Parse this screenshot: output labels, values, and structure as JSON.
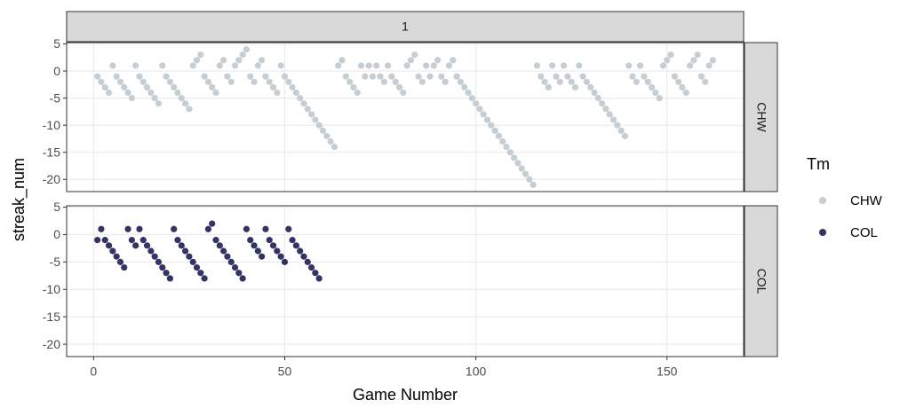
{
  "chart_data": {
    "type": "scatter",
    "strip_title": "1",
    "xlabel": "Game Number",
    "ylabel": "streak_num",
    "legend_title": "Tm",
    "xlim": [
      -7.05,
      170.05
    ],
    "xticks": [
      0,
      50,
      100,
      150
    ],
    "ylim": [
      -22.25,
      5.25
    ],
    "yticks": [
      -20,
      -15,
      -10,
      -5,
      0,
      5
    ],
    "grid": true,
    "legend": "right",
    "series": [
      {
        "name": "CHW",
        "color": "#c4ced4",
        "x": [
          1,
          2,
          3,
          4,
          5,
          6,
          7,
          8,
          9,
          10,
          11,
          12,
          13,
          14,
          15,
          16,
          17,
          18,
          19,
          20,
          21,
          22,
          23,
          24,
          25,
          26,
          27,
          28,
          29,
          30,
          31,
          32,
          33,
          34,
          35,
          36,
          37,
          38,
          39,
          40,
          41,
          42,
          43,
          44,
          45,
          46,
          47,
          48,
          49,
          50,
          51,
          52,
          53,
          54,
          55,
          56,
          57,
          58,
          59,
          60,
          61,
          62,
          63,
          64,
          65,
          66,
          67,
          68,
          69,
          70,
          71,
          72,
          73,
          74,
          75,
          76,
          77,
          78,
          79,
          80,
          81,
          82,
          83,
          84,
          85,
          86,
          87,
          88,
          89,
          90,
          91,
          92,
          93,
          94,
          95,
          96,
          97,
          98,
          99,
          100,
          101,
          102,
          103,
          104,
          105,
          106,
          107,
          108,
          109,
          110,
          111,
          112,
          113,
          114,
          115,
          116,
          117,
          118,
          119,
          120,
          121,
          122,
          123,
          124,
          125,
          126,
          127,
          128,
          129,
          130,
          131,
          132,
          133,
          134,
          135,
          136,
          137,
          138,
          139,
          140,
          141,
          142,
          143,
          144,
          145,
          146,
          147,
          148,
          149,
          150,
          151,
          152,
          153,
          154,
          155,
          156,
          157,
          158,
          159,
          160,
          161,
          162
        ],
        "values": [
          -1,
          -2,
          -3,
          -4,
          1,
          -1,
          -2,
          -3,
          -4,
          -5,
          1,
          -1,
          -2,
          -3,
          -4,
          -5,
          -6,
          1,
          -1,
          -2,
          -3,
          -4,
          -5,
          -6,
          -7,
          1,
          2,
          3,
          -1,
          -2,
          -3,
          -4,
          1,
          2,
          -1,
          -2,
          1,
          2,
          3,
          4,
          -1,
          -2,
          1,
          2,
          -1,
          -2,
          -3,
          -4,
          1,
          -1,
          -2,
          -3,
          -4,
          -5,
          -6,
          -7,
          -8,
          -9,
          -10,
          -11,
          -12,
          -13,
          -14,
          1,
          2,
          -1,
          -2,
          -3,
          -4,
          1,
          -1,
          1,
          -1,
          1,
          -1,
          -2,
          1,
          -1,
          -2,
          -3,
          -4,
          1,
          2,
          3,
          -1,
          -2,
          1,
          -1,
          1,
          2,
          -1,
          -2,
          1,
          2,
          -1,
          -2,
          -3,
          -4,
          -5,
          -6,
          -7,
          -8,
          -9,
          -10,
          -11,
          -12,
          -13,
          -14,
          -15,
          -16,
          -17,
          -18,
          -19,
          -20,
          -21,
          1,
          -1,
          -2,
          -3,
          1,
          -1,
          -2,
          1,
          -1,
          -2,
          -3,
          1,
          -1,
          -2,
          -3,
          -4,
          -5,
          -6,
          -7,
          -8,
          -9,
          -10,
          -11,
          -12,
          1,
          -1,
          -2,
          1,
          -1,
          -2,
          -3,
          -4,
          -5,
          1,
          2,
          3,
          -1,
          -2,
          -3,
          -4,
          1,
          2,
          3,
          -1,
          -2,
          1,
          2
        ]
      },
      {
        "name": "COL",
        "color": "#333366",
        "x": [
          1,
          2,
          3,
          4,
          5,
          6,
          7,
          8,
          9,
          10,
          11,
          12,
          13,
          14,
          15,
          16,
          17,
          18,
          19,
          20,
          21,
          22,
          23,
          24,
          25,
          26,
          27,
          28,
          29,
          30,
          31,
          32,
          33,
          34,
          35,
          36,
          37,
          38,
          39,
          40,
          41,
          42,
          43,
          44,
          45,
          46,
          47,
          48,
          49,
          50,
          51,
          52,
          53,
          54,
          55,
          56,
          57,
          58,
          59
        ],
        "values": [
          -1,
          1,
          -1,
          -2,
          -3,
          -4,
          -5,
          -6,
          1,
          -1,
          -2,
          1,
          -1,
          -2,
          -3,
          -4,
          -5,
          -6,
          -7,
          -8,
          1,
          -1,
          -2,
          -3,
          -4,
          -5,
          -6,
          -7,
          -8,
          1,
          2,
          -1,
          -2,
          -3,
          -4,
          -5,
          -6,
          -7,
          -8,
          1,
          -1,
          -2,
          -3,
          -4,
          1,
          -1,
          -2,
          -3,
          -4,
          -5,
          1,
          -1,
          -2,
          -3,
          -4,
          -5,
          -6,
          -7,
          -8
        ]
      }
    ]
  }
}
